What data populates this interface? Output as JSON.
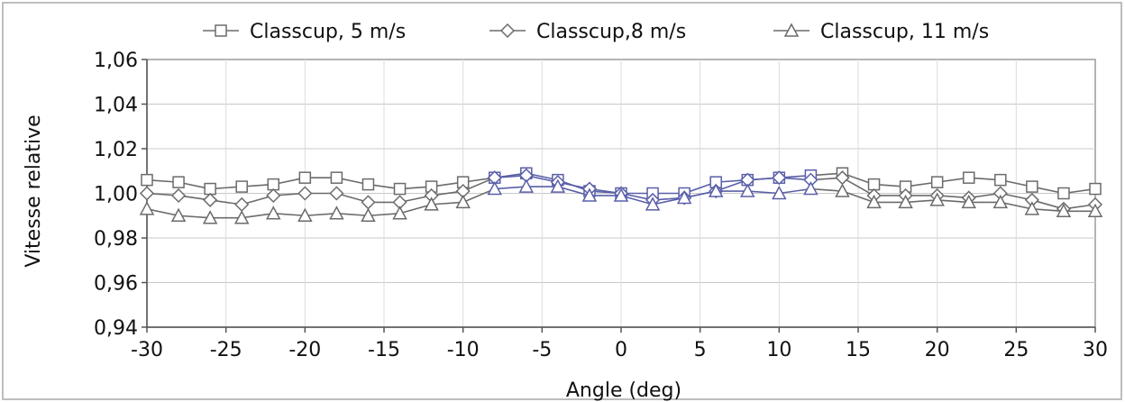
{
  "chart_data": {
    "type": "line",
    "title": "",
    "xlabel": "Angle (deg)",
    "ylabel": "Vitesse relative",
    "xlim": [
      -30,
      30
    ],
    "ylim": [
      0.94,
      1.06
    ],
    "x_ticks": [
      -30,
      -25,
      -20,
      -15,
      -10,
      -5,
      0,
      5,
      10,
      15,
      20,
      25,
      30
    ],
    "x_tick_labels": [
      "-30",
      "-25",
      "-20",
      "-15",
      "-10",
      "-5",
      "0",
      "5",
      "10",
      "15",
      "20",
      "25",
      "30"
    ],
    "y_ticks": [
      0.94,
      0.96,
      0.98,
      1.0,
      1.02,
      1.04,
      1.06
    ],
    "y_tick_labels": [
      "0,94",
      "0,96",
      "0,98",
      "1,00",
      "1,02",
      "1,04",
      "1,06"
    ],
    "grid": true,
    "legend_position": "top",
    "x": [
      -30,
      -28,
      -26,
      -24,
      -22,
      -20,
      -18,
      -16,
      -14,
      -12,
      -10,
      -8,
      -6,
      -4,
      -2,
      0,
      2,
      4,
      6,
      8,
      10,
      12,
      14,
      16,
      18,
      20,
      22,
      24,
      26,
      28,
      30
    ],
    "series": [
      {
        "name": "Classcup, 5 m/s",
        "marker": "square",
        "color": "#6b6b6b",
        "values": [
          1.006,
          1.005,
          1.002,
          1.003,
          1.004,
          1.007,
          1.007,
          1.004,
          1.002,
          1.003,
          1.005,
          1.007,
          1.009,
          1.006,
          1.001,
          1.0,
          1.0,
          1.0,
          1.005,
          1.006,
          1.007,
          1.008,
          1.009,
          1.004,
          1.003,
          1.005,
          1.007,
          1.006,
          1.003,
          1.0,
          1.002
        ]
      },
      {
        "name": "Classcup,8 m/s",
        "marker": "diamond",
        "color": "#6b6b6b",
        "values": [
          1.0,
          0.999,
          0.997,
          0.995,
          0.999,
          1.0,
          1.0,
          0.996,
          0.996,
          0.999,
          1.001,
          1.007,
          1.008,
          1.005,
          1.002,
          1.0,
          0.997,
          0.998,
          1.001,
          1.006,
          1.007,
          1.006,
          1.007,
          0.999,
          0.999,
          0.999,
          0.998,
          1.0,
          0.997,
          0.993,
          0.995
        ]
      },
      {
        "name": "Classcup, 11 m/s",
        "marker": "triangle",
        "color": "#6b6b6b",
        "values": [
          0.993,
          0.99,
          0.989,
          0.989,
          0.991,
          0.99,
          0.991,
          0.99,
          0.991,
          0.995,
          0.996,
          1.002,
          1.003,
          1.003,
          0.999,
          0.999,
          0.995,
          0.998,
          1.001,
          1.001,
          1.0,
          1.002,
          1.001,
          0.996,
          0.996,
          0.997,
          0.996,
          0.996,
          0.993,
          0.992,
          0.992
        ]
      }
    ],
    "highlight_color": "#5a5fa8",
    "highlight_range": [
      -9,
      13
    ]
  }
}
